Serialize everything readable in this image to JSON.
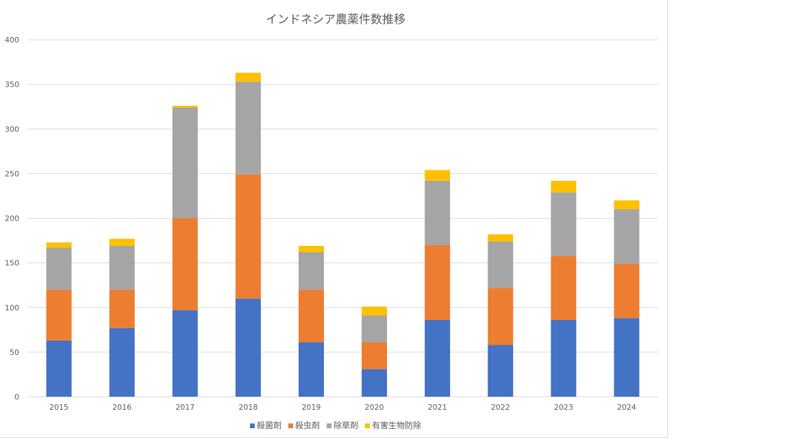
{
  "chart_data": {
    "type": "bar",
    "stacked": true,
    "title": "インドネシア農薬件数推移",
    "xlabel": "",
    "ylabel": "",
    "ylim": [
      0,
      400
    ],
    "yticks": [
      0,
      50,
      100,
      150,
      200,
      250,
      300,
      350,
      400
    ],
    "grid": true,
    "legend_position": "bottom",
    "categories": [
      "2015",
      "2016",
      "2017",
      "2018",
      "2019",
      "2020",
      "2021",
      "2022",
      "2023",
      "2024"
    ],
    "series": [
      {
        "name": "殺菌剤",
        "color": "#4472c4",
        "values": [
          63,
          77,
          97,
          110,
          61,
          31,
          86,
          58,
          86,
          88
        ]
      },
      {
        "name": "殺虫剤",
        "color": "#ed7d31",
        "values": [
          57,
          43,
          103,
          139,
          59,
          30,
          84,
          64,
          72,
          61
        ]
      },
      {
        "name": "除草剤",
        "color": "#a5a5a5",
        "values": [
          47,
          49,
          124,
          104,
          42,
          30,
          72,
          52,
          71,
          61
        ]
      },
      {
        "name": "有害生物防除",
        "color": "#ffc000",
        "values": [
          6,
          8,
          2,
          10,
          7,
          10,
          12,
          8,
          13,
          10
        ]
      }
    ]
  }
}
